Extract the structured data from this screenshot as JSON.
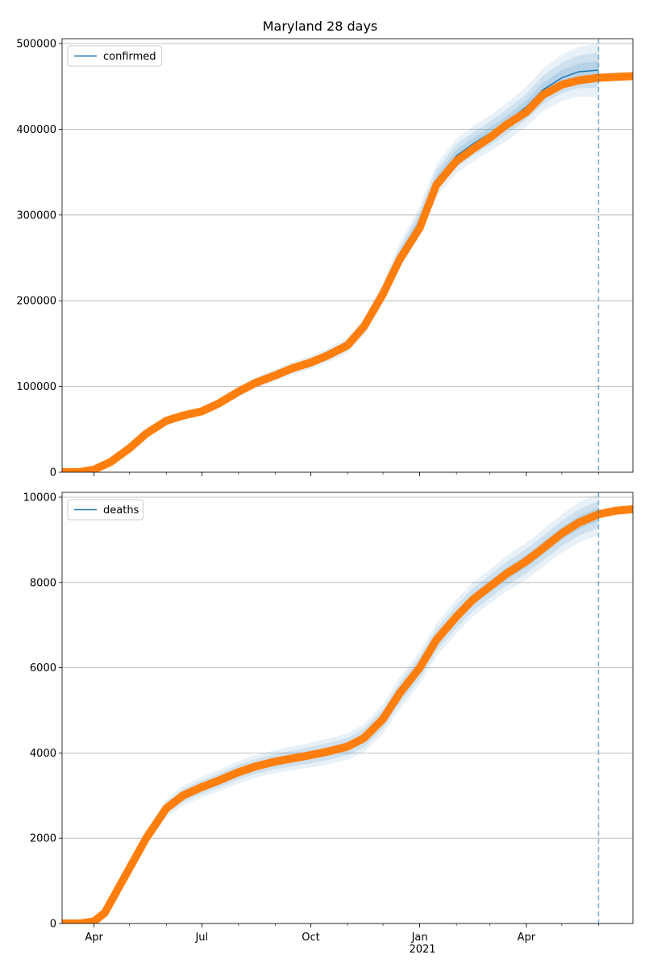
{
  "figure": {
    "title": "Maryland 28 days"
  },
  "colors": {
    "model": "#1f77b4",
    "observed": "#ff7f0e",
    "band": "#1f77b4",
    "grid": "#b0b0b0",
    "vline": "#1f77b4"
  },
  "x_axis": {
    "range": [
      "2020-03-05",
      "2021-06-30"
    ],
    "major_ticks": [
      {
        "date": "2020-04-01",
        "label": "Apr"
      },
      {
        "date": "2020-07-01",
        "label": "Jul"
      },
      {
        "date": "2020-10-01",
        "label": "Oct"
      },
      {
        "date": "2021-01-01",
        "label": "Jan"
      },
      {
        "date": "2021-04-01",
        "label": "Apr"
      }
    ],
    "year_label": {
      "date": "2021-01-01",
      "label": "2021"
    },
    "forecast_date": "2021-06-01"
  },
  "chart_data": [
    {
      "type": "line",
      "title": "Maryland 28 days",
      "legend": "confirmed",
      "legend_position": "upper left",
      "ylim": [
        0,
        500000
      ],
      "yticks": [
        {
          "value": 0,
          "label": "0"
        },
        {
          "value": 100000,
          "label": "100000"
        },
        {
          "value": 200000,
          "label": "200000"
        },
        {
          "value": 300000,
          "label": "300000"
        },
        {
          "value": 400000,
          "label": "400000"
        },
        {
          "value": 500000,
          "label": "500000"
        }
      ],
      "grid": "horizontal",
      "model": {
        "name": "confirmed",
        "x": [
          "2020-03-05",
          "2020-04-01",
          "2020-04-15",
          "2020-05-01",
          "2020-05-15",
          "2020-06-01",
          "2020-06-15",
          "2020-07-01",
          "2020-07-15",
          "2020-08-01",
          "2020-08-15",
          "2020-09-01",
          "2020-09-15",
          "2020-10-01",
          "2020-10-15",
          "2020-11-01",
          "2020-11-15",
          "2020-12-01",
          "2020-12-15",
          "2021-01-01",
          "2021-01-15",
          "2021-02-01",
          "2021-02-15",
          "2021-03-01",
          "2021-03-15",
          "2021-04-01",
          "2021-04-15",
          "2021-05-01",
          "2021-05-15",
          "2021-06-01"
        ],
        "y": [
          500,
          3000,
          12000,
          28000,
          45000,
          60000,
          66000,
          71000,
          80000,
          94000,
          104000,
          113000,
          121000,
          128000,
          136000,
          148000,
          170000,
          210000,
          252000,
          293000,
          340000,
          369000,
          383000,
          395000,
          408000,
          426000,
          446000,
          460000,
          467000,
          469000
        ],
        "band_width": [
          300,
          500,
          1000,
          2000,
          3000,
          4000,
          4500,
          4800,
          5200,
          6000,
          6500,
          7000,
          7500,
          8000,
          8500,
          9000,
          10000,
          12000,
          15000,
          17000,
          19000,
          20000,
          20500,
          21000,
          22000,
          23000,
          25000,
          27000,
          29000,
          31000
        ]
      },
      "observed": {
        "x": [
          "2020-03-05",
          "2020-03-20",
          "2020-04-01",
          "2020-04-15",
          "2020-05-01",
          "2020-05-15",
          "2020-06-01",
          "2020-06-15",
          "2020-07-01",
          "2020-07-15",
          "2020-08-01",
          "2020-08-15",
          "2020-09-01",
          "2020-09-15",
          "2020-10-01",
          "2020-10-15",
          "2020-11-01",
          "2020-11-15",
          "2020-12-01",
          "2020-12-15",
          "2021-01-01",
          "2021-01-15",
          "2021-02-01",
          "2021-02-15",
          "2021-03-01",
          "2021-03-15",
          "2021-04-01",
          "2021-04-15",
          "2021-05-01",
          "2021-05-15",
          "2021-06-01",
          "2021-06-15",
          "2021-06-30"
        ],
        "y": [
          0,
          200,
          3000,
          12000,
          28000,
          45000,
          60000,
          66000,
          71000,
          80000,
          94000,
          104000,
          113000,
          121000,
          128000,
          136000,
          148000,
          170000,
          208000,
          248000,
          285000,
          335000,
          363000,
          377000,
          390000,
          405000,
          420000,
          440000,
          452000,
          457000,
          460000,
          461000,
          462000
        ]
      }
    },
    {
      "type": "line",
      "legend": "deaths",
      "legend_position": "upper left",
      "ylim": [
        0,
        10000
      ],
      "yticks": [
        {
          "value": 0,
          "label": "0"
        },
        {
          "value": 2000,
          "label": "2000"
        },
        {
          "value": 4000,
          "label": "4000"
        },
        {
          "value": 6000,
          "label": "6000"
        },
        {
          "value": 8000,
          "label": "8000"
        },
        {
          "value": 10000,
          "label": "10000"
        }
      ],
      "grid": "horizontal",
      "model": {
        "name": "deaths",
        "x": [
          "2020-03-05",
          "2020-04-01",
          "2020-04-10",
          "2020-04-15",
          "2020-05-01",
          "2020-05-15",
          "2020-06-01",
          "2020-06-15",
          "2020-07-01",
          "2020-07-15",
          "2020-08-01",
          "2020-08-15",
          "2020-09-01",
          "2020-09-15",
          "2020-10-01",
          "2020-10-15",
          "2020-11-01",
          "2020-11-15",
          "2020-12-01",
          "2020-12-15",
          "2021-01-01",
          "2021-01-15",
          "2021-02-01",
          "2021-02-15",
          "2021-03-01",
          "2021-03-15",
          "2021-04-01",
          "2021-04-15",
          "2021-05-01",
          "2021-05-15",
          "2021-06-01"
        ],
        "y": [
          0,
          50,
          250,
          500,
          1300,
          2000,
          2700,
          3000,
          3200,
          3350,
          3550,
          3680,
          3800,
          3870,
          3950,
          4030,
          4150,
          4350,
          4800,
          5400,
          6000,
          6650,
          7200,
          7600,
          7900,
          8200,
          8500,
          8800,
          9150,
          9400,
          9600
        ],
        "band_width": [
          20,
          60,
          100,
          120,
          150,
          180,
          210,
          230,
          240,
          250,
          260,
          265,
          270,
          280,
          290,
          300,
          310,
          330,
          350,
          370,
          380,
          390,
          400,
          400,
          400,
          420,
          430,
          440,
          450,
          470,
          490
        ]
      },
      "observed": {
        "x": [
          "2020-03-05",
          "2020-03-20",
          "2020-04-01",
          "2020-04-10",
          "2020-04-15",
          "2020-05-01",
          "2020-05-15",
          "2020-06-01",
          "2020-06-15",
          "2020-07-01",
          "2020-07-15",
          "2020-08-01",
          "2020-08-15",
          "2020-09-01",
          "2020-09-15",
          "2020-10-01",
          "2020-10-15",
          "2020-11-01",
          "2020-11-15",
          "2020-12-01",
          "2020-12-15",
          "2021-01-01",
          "2021-01-15",
          "2021-02-01",
          "2021-02-15",
          "2021-03-01",
          "2021-03-15",
          "2021-04-01",
          "2021-04-15",
          "2021-05-01",
          "2021-05-15",
          "2021-06-01",
          "2021-06-15",
          "2021-06-30"
        ],
        "y": [
          0,
          0,
          50,
          250,
          500,
          1300,
          2000,
          2700,
          3000,
          3200,
          3350,
          3550,
          3680,
          3800,
          3870,
          3950,
          4030,
          4150,
          4350,
          4800,
          5400,
          6000,
          6650,
          7200,
          7600,
          7900,
          8200,
          8500,
          8800,
          9150,
          9400,
          9600,
          9680,
          9720
        ]
      }
    }
  ]
}
